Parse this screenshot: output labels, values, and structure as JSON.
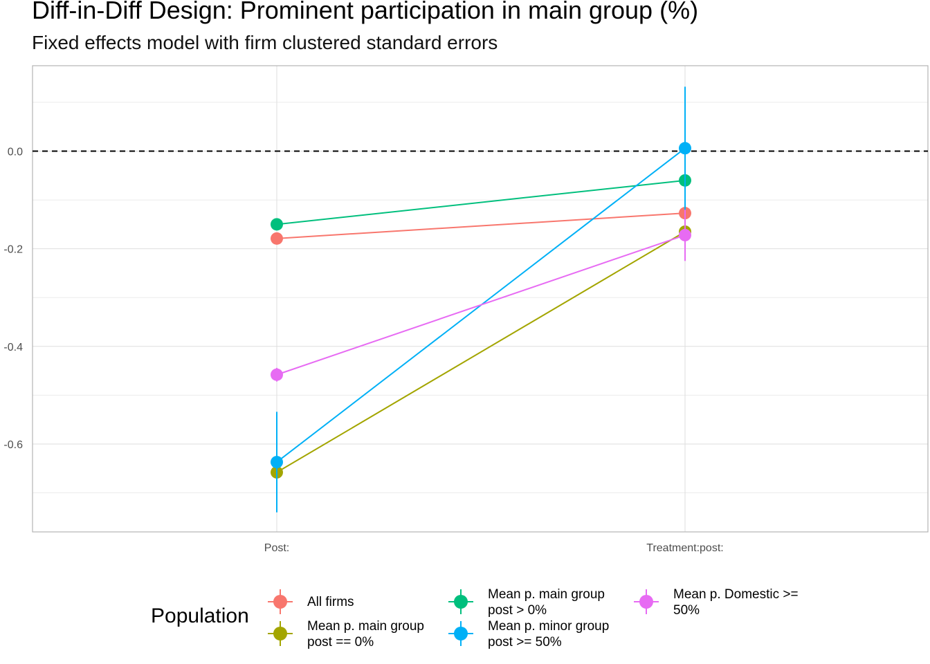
{
  "title": "Diff-in-Diff Design: Prominent participation in main group (%)",
  "subtitle": "Fixed effects model with firm clustered standard errors",
  "chart_data": {
    "type": "scatter",
    "categories": [
      "Post:",
      "Treatment:post:"
    ],
    "ylim": [
      -0.78,
      0.175
    ],
    "y_ticks": [
      "0.0",
      "-0.2",
      "-0.4",
      "-0.6"
    ],
    "y_tick_values": [
      0.0,
      -0.2,
      -0.4,
      -0.6
    ],
    "reference_line": 0.0,
    "grid": true,
    "legend_title": "Population",
    "legend_position": "bottom",
    "series": [
      {
        "name": "All firms",
        "color": "#F8766D",
        "values": [
          -0.179,
          -0.127
        ],
        "ci_low": [
          -0.19,
          -0.14
        ],
        "ci_high": [
          -0.168,
          -0.114
        ]
      },
      {
        "name": "Mean p. main group post == 0%",
        "color": "#A3A500",
        "values": [
          -0.658,
          -0.165
        ],
        "ci_low": [
          -0.672,
          -0.178
        ],
        "ci_high": [
          -0.644,
          -0.152
        ]
      },
      {
        "name": "Mean p. main group post > 0%",
        "color": "#00BF7D",
        "values": [
          -0.15,
          -0.06
        ],
        "ci_low": [
          -0.16,
          -0.13
        ],
        "ci_high": [
          -0.14,
          0.01
        ]
      },
      {
        "name": "Mean p. minor group post >= 50%",
        "color": "#00B0F6",
        "values": [
          -0.637,
          0.006
        ],
        "ci_low": [
          -0.74,
          -0.12
        ],
        "ci_high": [
          -0.534,
          0.132
        ]
      },
      {
        "name": "Mean p. Domestic >= 50%",
        "color": "#E76BF3",
        "values": [
          -0.458,
          -0.172
        ],
        "ci_low": [
          -0.472,
          -0.225
        ],
        "ci_high": [
          -0.444,
          -0.12
        ]
      }
    ]
  },
  "legend": [
    {
      "line1": "All firms",
      "line2": "",
      "color": "#F8766D"
    },
    {
      "line1": "Mean p. main group",
      "line2": "post == 0%",
      "color": "#A3A500"
    },
    {
      "line1": "Mean p. main group",
      "line2": "post > 0%",
      "color": "#00BF7D"
    },
    {
      "line1": "Mean p. minor group",
      "line2": "post >= 50%",
      "color": "#00B0F6"
    },
    {
      "line1": "Mean p. Domestic >=",
      "line2": "50%",
      "color": "#E76BF3"
    }
  ]
}
